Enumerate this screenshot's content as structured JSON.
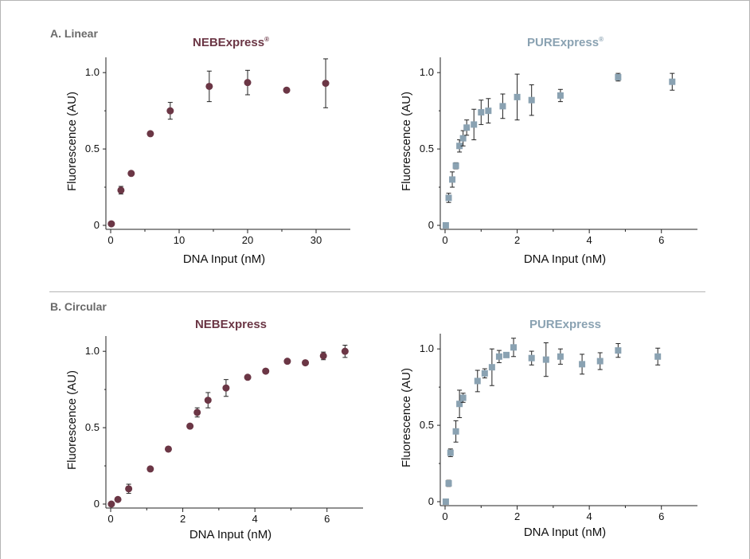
{
  "colors": {
    "neb": "#6b3645",
    "pure": "#8aa2b2",
    "section_label": "#6a6a6a",
    "border": "#b5b5b5"
  },
  "sections": {
    "linear_label": "A. Linear",
    "circular_label": "B. Circular"
  },
  "chart_data": [
    {
      "type": "scatter",
      "section": "A. Linear",
      "title": "NEBExpress",
      "title_superscript": "®",
      "color": "#6b3645",
      "marker": "circle",
      "xlabel": "DNA Input (nM)",
      "ylabel": "Fluorescence (AU)",
      "xlim": [
        0,
        35
      ],
      "ylim": [
        0,
        1.1
      ],
      "xticks": [
        0,
        10,
        20,
        30
      ],
      "xtick_labels": [
        "0",
        "10",
        "20",
        "30"
      ],
      "yticks": [
        0,
        0.5,
        1.0
      ],
      "ytick_labels": [
        "0",
        "0.5",
        "1.0"
      ],
      "points": [
        {
          "x": 0.1,
          "y": 0.01,
          "err": 0
        },
        {
          "x": 1.5,
          "y": 0.23,
          "err": 0.025
        },
        {
          "x": 3.0,
          "y": 0.34,
          "err": 0
        },
        {
          "x": 5.8,
          "y": 0.6,
          "err": 0
        },
        {
          "x": 8.7,
          "y": 0.75,
          "err": 0.055
        },
        {
          "x": 14.4,
          "y": 0.91,
          "err": 0.1
        },
        {
          "x": 20.0,
          "y": 0.935,
          "err": 0.08
        },
        {
          "x": 25.7,
          "y": 0.885,
          "err": 0
        },
        {
          "x": 31.4,
          "y": 0.93,
          "err": 0.16
        }
      ]
    },
    {
      "type": "scatter",
      "section": "A. Linear",
      "title": "PURExpress",
      "title_superscript": "®",
      "color": "#8aa2b2",
      "marker": "square",
      "xlabel": "DNA Input (nM)",
      "ylabel": "Fluorescence (AU)",
      "xlim": [
        0,
        7
      ],
      "ylim": [
        0,
        1.1
      ],
      "xticks": [
        0,
        2,
        4,
        6
      ],
      "xtick_labels": [
        "0",
        "2",
        "4",
        "6"
      ],
      "yticks": [
        0,
        0.5,
        1.0
      ],
      "ytick_labels": [
        "0",
        "0.5",
        "1.0"
      ],
      "points": [
        {
          "x": 0.02,
          "y": 0.0,
          "err": 0
        },
        {
          "x": 0.1,
          "y": 0.18,
          "err": 0.03
        },
        {
          "x": 0.2,
          "y": 0.3,
          "err": 0.05
        },
        {
          "x": 0.3,
          "y": 0.39,
          "err": 0.02
        },
        {
          "x": 0.4,
          "y": 0.52,
          "err": 0.04
        },
        {
          "x": 0.5,
          "y": 0.57,
          "err": 0.05
        },
        {
          "x": 0.6,
          "y": 0.64,
          "err": 0.05
        },
        {
          "x": 0.8,
          "y": 0.66,
          "err": 0.1
        },
        {
          "x": 1.0,
          "y": 0.74,
          "err": 0.08
        },
        {
          "x": 1.2,
          "y": 0.75,
          "err": 0.08
        },
        {
          "x": 1.6,
          "y": 0.78,
          "err": 0.08
        },
        {
          "x": 2.0,
          "y": 0.84,
          "err": 0.15
        },
        {
          "x": 2.4,
          "y": 0.82,
          "err": 0.1
        },
        {
          "x": 3.2,
          "y": 0.85,
          "err": 0.04
        },
        {
          "x": 4.8,
          "y": 0.97,
          "err": 0.025
        },
        {
          "x": 6.3,
          "y": 0.94,
          "err": 0.055
        }
      ]
    },
    {
      "type": "scatter",
      "section": "B. Circular",
      "title": "NEBExpress",
      "title_superscript": "",
      "color": "#6b3645",
      "marker": "circle",
      "xlabel": "DNA Input (nM)",
      "ylabel": "Fluorescence (AU)",
      "xlim": [
        0,
        7
      ],
      "ylim": [
        0,
        1.1
      ],
      "xticks": [
        0,
        2,
        4,
        6
      ],
      "xtick_labels": [
        "0",
        "2",
        "4",
        "6"
      ],
      "yticks": [
        0,
        0.5,
        1.0
      ],
      "ytick_labels": [
        "0",
        "0.5",
        "1.0"
      ],
      "points": [
        {
          "x": 0.02,
          "y": 0.0,
          "err": 0
        },
        {
          "x": 0.2,
          "y": 0.03,
          "err": 0
        },
        {
          "x": 0.5,
          "y": 0.1,
          "err": 0.03
        },
        {
          "x": 1.1,
          "y": 0.23,
          "err": 0
        },
        {
          "x": 1.6,
          "y": 0.36,
          "err": 0
        },
        {
          "x": 2.2,
          "y": 0.51,
          "err": 0
        },
        {
          "x": 2.4,
          "y": 0.6,
          "err": 0.03
        },
        {
          "x": 2.7,
          "y": 0.68,
          "err": 0.05
        },
        {
          "x": 3.2,
          "y": 0.76,
          "err": 0.055
        },
        {
          "x": 3.8,
          "y": 0.83,
          "err": 0
        },
        {
          "x": 4.3,
          "y": 0.87,
          "err": 0
        },
        {
          "x": 4.9,
          "y": 0.935,
          "err": 0
        },
        {
          "x": 5.4,
          "y": 0.925,
          "err": 0
        },
        {
          "x": 5.9,
          "y": 0.97,
          "err": 0.025
        },
        {
          "x": 6.5,
          "y": 1.0,
          "err": 0.04
        }
      ]
    },
    {
      "type": "scatter",
      "section": "B. Circular",
      "title": "PURExpress",
      "title_superscript": "",
      "color": "#8aa2b2",
      "marker": "square",
      "xlabel": "DNA Input (nM)",
      "ylabel": "Fluorescence (AU)",
      "xlim": [
        0,
        7
      ],
      "ylim": [
        0,
        1.1
      ],
      "xticks": [
        0,
        2,
        4,
        6
      ],
      "xtick_labels": [
        "0",
        "2",
        "4",
        "6"
      ],
      "yticks": [
        0,
        0.5,
        1.0
      ],
      "ytick_labels": [
        "0",
        "0.5",
        "1.0"
      ],
      "points": [
        {
          "x": 0.02,
          "y": 0.0,
          "err": 0
        },
        {
          "x": 0.1,
          "y": 0.12,
          "err": 0.02
        },
        {
          "x": 0.15,
          "y": 0.32,
          "err": 0.025
        },
        {
          "x": 0.3,
          "y": 0.46,
          "err": 0.07
        },
        {
          "x": 0.4,
          "y": 0.64,
          "err": 0.09
        },
        {
          "x": 0.5,
          "y": 0.68,
          "err": 0.03
        },
        {
          "x": 0.9,
          "y": 0.79,
          "err": 0.07
        },
        {
          "x": 1.1,
          "y": 0.84,
          "err": 0.03
        },
        {
          "x": 1.3,
          "y": 0.88,
          "err": 0.12
        },
        {
          "x": 1.5,
          "y": 0.95,
          "err": 0.04
        },
        {
          "x": 1.7,
          "y": 0.96,
          "err": 0
        },
        {
          "x": 1.9,
          "y": 1.01,
          "err": 0.06
        },
        {
          "x": 2.4,
          "y": 0.94,
          "err": 0.045
        },
        {
          "x": 2.8,
          "y": 0.93,
          "err": 0.11
        },
        {
          "x": 3.2,
          "y": 0.95,
          "err": 0.05
        },
        {
          "x": 3.8,
          "y": 0.9,
          "err": 0.065
        },
        {
          "x": 4.3,
          "y": 0.92,
          "err": 0.055
        },
        {
          "x": 4.8,
          "y": 0.99,
          "err": 0.045
        },
        {
          "x": 5.9,
          "y": 0.95,
          "err": 0.055
        }
      ]
    }
  ]
}
